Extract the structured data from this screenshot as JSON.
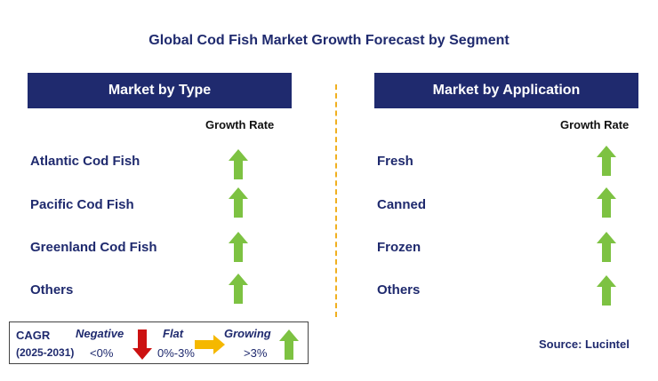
{
  "title": "Global Cod Fish Market Growth Forecast by Segment",
  "left": {
    "header": "Market by Type",
    "growth_rate_label": "Growth Rate",
    "items": [
      "Atlantic Cod Fish",
      "Pacific Cod Fish",
      "Greenland Cod Fish",
      "Others"
    ]
  },
  "right": {
    "header": "Market by Application",
    "growth_rate_label": "Growth Rate",
    "items": [
      "Fresh",
      "Canned",
      "Frozen",
      "Others"
    ]
  },
  "legend": {
    "cagr": "CAGR",
    "period": "(2025-2031)",
    "negative": "Negative",
    "negative_range": "<0%",
    "flat": "Flat",
    "flat_range": "0%-3%",
    "growing": "Growing",
    "growing_range": ">3%"
  },
  "source": "Source: Lucintel",
  "colors": {
    "header_bg": "#1f2a6e",
    "up_arrow": "#7dc242",
    "down_arrow": "#cc1111",
    "flat_arrow": "#f5b800",
    "divider": "#f0b020"
  }
}
